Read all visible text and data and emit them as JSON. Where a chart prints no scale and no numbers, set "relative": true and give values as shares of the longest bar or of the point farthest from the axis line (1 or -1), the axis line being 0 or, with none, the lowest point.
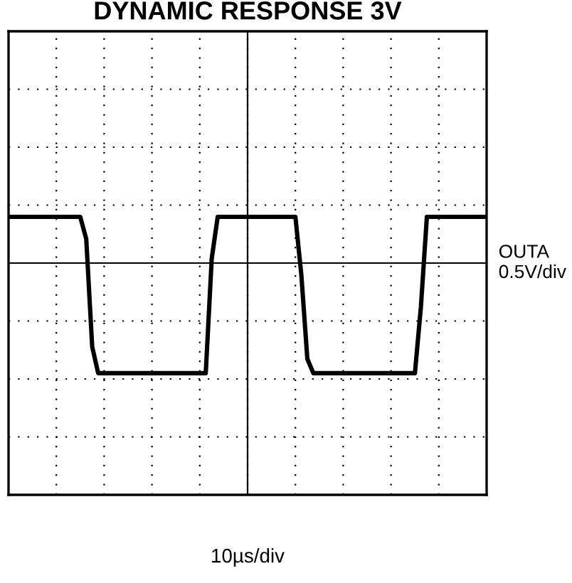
{
  "chart_data": {
    "type": "line",
    "title": "DYNAMIC RESPONSE 3V",
    "annotations": [
      "10µs/div"
    ],
    "ylabel": "OUTA\n0.5V/div",
    "relative": true,
    "grid": true,
    "tick_labels": false,
    "marker": "none",
    "line_style": "solid",
    "categories": [
      null,
      null,
      null,
      null,
      null,
      null,
      null,
      null,
      null,
      null,
      null,
      null,
      null,
      null,
      null,
      null,
      null,
      null,
      null,
      null,
      null,
      null,
      null,
      null,
      null,
      null,
      null,
      null,
      null,
      null,
      null,
      null,
      null,
      null,
      null,
      null,
      null,
      null,
      null,
      null,
      null,
      null,
      null,
      null,
      null,
      null,
      null,
      null,
      null,
      null,
      null,
      null,
      null,
      null,
      null,
      null,
      null,
      null,
      null,
      null,
      null,
      null,
      null,
      null,
      null,
      null,
      null,
      null,
      null,
      null,
      null,
      null,
      null,
      null,
      null,
      null,
      null,
      null,
      null,
      null,
      null
    ],
    "series": [
      {
        "color": "#000000",
        "values": [
          0.42,
          0.42,
          0.42,
          0.42,
          0.42,
          0.42,
          0.42,
          0.42,
          0.42,
          0.42,
          0.42,
          0.42,
          0.42,
          0.22,
          -0.76,
          -1,
          -1,
          -1,
          -1,
          -1,
          -1,
          -1,
          -1,
          -1,
          -1,
          -1,
          -1,
          -1,
          -1,
          -1,
          -1,
          -1,
          -1,
          -1,
          0.04,
          0.42,
          0.42,
          0.42,
          0.42,
          0.42,
          0.42,
          0.42,
          0.42,
          0.42,
          0.42,
          0.42,
          0.42,
          0.42,
          0.42,
          -0.11,
          -0.87,
          -1,
          -1,
          -1,
          -1,
          -1,
          -1,
          -1,
          -1,
          -1,
          -1,
          -1,
          -1,
          -1,
          -1,
          -1,
          -1,
          -1,
          -1,
          -0.4,
          0.42,
          0.42,
          0.42,
          0.42,
          0.42,
          0.42,
          0.42,
          0.42,
          0.42,
          0.42,
          0.42
        ]
      }
    ]
  }
}
